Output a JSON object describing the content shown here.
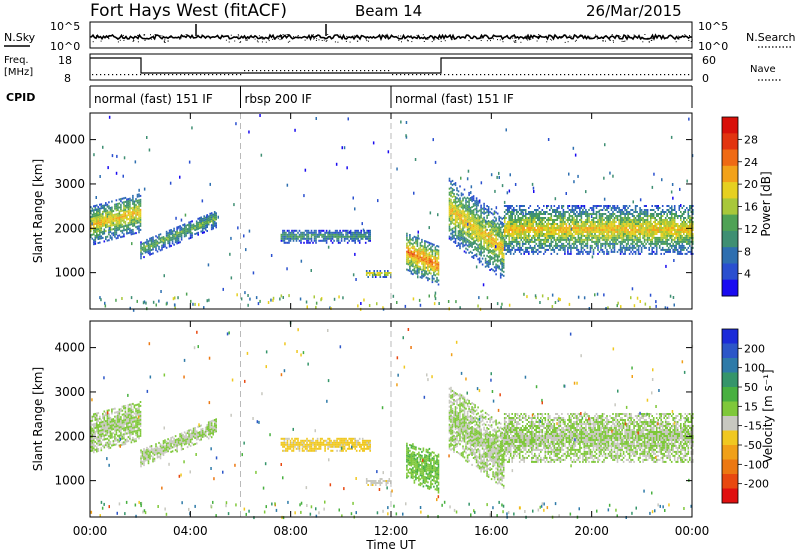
{
  "header": {
    "station": "Fort Hays West (fitACF)",
    "beam": "Beam 14",
    "date": "26/Mar/2015"
  },
  "strip": {
    "nsky_label": "N.Sky",
    "nsearch_label": "N.Search",
    "freq_label_line1": "Freq.",
    "freq_label_line2": "[MHz]",
    "nave_label": "Nave",
    "cpid_label": "CPID",
    "noise_ticks": [
      "10^5",
      "10^0"
    ],
    "noise_ticks_right": [
      "10^5",
      "10^0"
    ],
    "freq_ticks": [
      "18",
      "8"
    ],
    "nave_ticks": [
      "60",
      "0"
    ]
  },
  "cpid_segments": [
    {
      "label": "normal (fast) 151 IF",
      "start": 0,
      "end": 6
    },
    {
      "label": "rbsp 200 IF",
      "start": 6,
      "end": 12
    },
    {
      "label": "normal (fast) 151 IF",
      "start": 12,
      "end": 24
    }
  ],
  "chart_data": [
    {
      "type": "heatmap",
      "name": "power",
      "xlabel": "Time UT",
      "ylabel": "Slant Range [km]",
      "xlim": [
        0,
        24
      ],
      "ylim": [
        180,
        4600
      ],
      "x_ticks": [
        "00:00",
        "04:00",
        "08:00",
        "12:00",
        "16:00",
        "20:00",
        "00:00"
      ],
      "y_ticks": [
        1000,
        2000,
        3000,
        4000
      ],
      "colorbar": {
        "label": "Power [dB]",
        "ticks": [
          "4",
          "8",
          "12",
          "16",
          "20",
          "24",
          "28"
        ],
        "colors": [
          "#1a0bf0",
          "#2a4fcf",
          "#2e6fb0",
          "#3f8f73",
          "#4fa255",
          "#a8c83a",
          "#e6d020",
          "#f2a21a",
          "#ef6a14",
          "#e23410",
          "#d8100a"
        ]
      },
      "echo_regions": [
        {
          "time_start": 0.0,
          "time_end": 2.0,
          "range_start": 1600,
          "range_end": 2500,
          "tilt": 300,
          "value_peak": 20
        },
        {
          "time_start": 2.0,
          "time_end": 5.0,
          "range_start": 1300,
          "range_end": 1700,
          "tilt": 700,
          "value_peak": 14
        },
        {
          "time_start": 7.6,
          "time_end": 11.2,
          "range_start": 1650,
          "range_end": 1950,
          "tilt": 0,
          "value_peak": 12
        },
        {
          "time_start": 11.0,
          "time_end": 12.0,
          "range_start": 880,
          "range_end": 1020,
          "tilt": 0,
          "value_peak": 22
        },
        {
          "time_start": 12.6,
          "time_end": 13.9,
          "range_start": 1000,
          "range_end": 1900,
          "tilt": -300,
          "value_peak": 24
        },
        {
          "time_start": 14.3,
          "time_end": 16.5,
          "range_start": 1700,
          "range_end": 3100,
          "tilt": -900,
          "value_peak": 20
        },
        {
          "time_start": 16.5,
          "time_end": 24.0,
          "range_start": 1400,
          "range_end": 2500,
          "tilt": 0,
          "value_peak": 20
        }
      ]
    },
    {
      "type": "heatmap",
      "name": "velocity",
      "xlabel": "Time UT",
      "ylabel": "Slant Range [km]",
      "xlim": [
        0,
        24
      ],
      "ylim": [
        180,
        4600
      ],
      "x_ticks": [
        "00:00",
        "04:00",
        "08:00",
        "12:00",
        "16:00",
        "20:00",
        "00:00"
      ],
      "y_ticks": [
        1000,
        2000,
        3000,
        4000
      ],
      "colorbar": {
        "label": "Velocity [m s⁻¹]",
        "ticks": [
          "200",
          "100",
          "50",
          "15",
          "-15",
          "-50",
          "-100",
          "-200"
        ],
        "colors": [
          "#1b2bd8",
          "#2c56c8",
          "#2e7aa8",
          "#35956a",
          "#48b040",
          "#7fc83a",
          "#c8c8c0",
          "#f0c820",
          "#f0a018",
          "#ec7812",
          "#e84810",
          "#e01010"
        ]
      },
      "echo_regions": [
        {
          "time_start": 0.0,
          "time_end": 2.0,
          "range_start": 1600,
          "range_end": 2500,
          "tilt": 300,
          "velocity": 0
        },
        {
          "time_start": 2.0,
          "time_end": 5.0,
          "range_start": 1300,
          "range_end": 1700,
          "tilt": 700,
          "velocity": 0
        },
        {
          "time_start": 7.6,
          "time_end": 11.2,
          "range_start": 1650,
          "range_end": 1950,
          "tilt": 0,
          "velocity": -60
        },
        {
          "time_start": 11.0,
          "time_end": 12.0,
          "range_start": 880,
          "range_end": 1020,
          "tilt": 0,
          "velocity": -30
        },
        {
          "time_start": 12.6,
          "time_end": 13.9,
          "range_start": 1000,
          "range_end": 1900,
          "tilt": -300,
          "velocity": 40
        },
        {
          "time_start": 14.3,
          "time_end": 16.5,
          "range_start": 1700,
          "range_end": 3100,
          "tilt": -900,
          "velocity": 0
        },
        {
          "time_start": 16.5,
          "time_end": 24.0,
          "range_start": 1400,
          "range_end": 2500,
          "tilt": 0,
          "velocity": 0
        }
      ]
    }
  ]
}
